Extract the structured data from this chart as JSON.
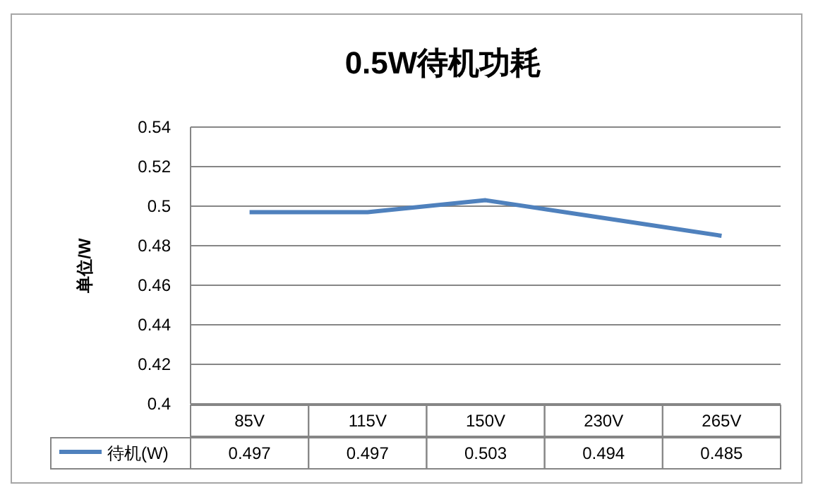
{
  "chart_data": {
    "type": "line",
    "title": "0.5W待机功耗",
    "ylabel": "单位/W",
    "categories": [
      "85V",
      "115V",
      "150V",
      "230V",
      "265V"
    ],
    "series": [
      {
        "name": "待机(W)",
        "color": "#4f81bd",
        "values": [
          0.497,
          0.497,
          0.503,
          0.494,
          0.485
        ]
      }
    ],
    "ylim": [
      0.4,
      0.54
    ],
    "yticks": [
      0.4,
      0.42,
      0.44,
      0.46,
      0.48,
      0.5,
      0.52,
      0.54
    ],
    "grid": "y",
    "data_labels": true,
    "legend": "bottom",
    "marker": "none",
    "line_style": "solid"
  }
}
